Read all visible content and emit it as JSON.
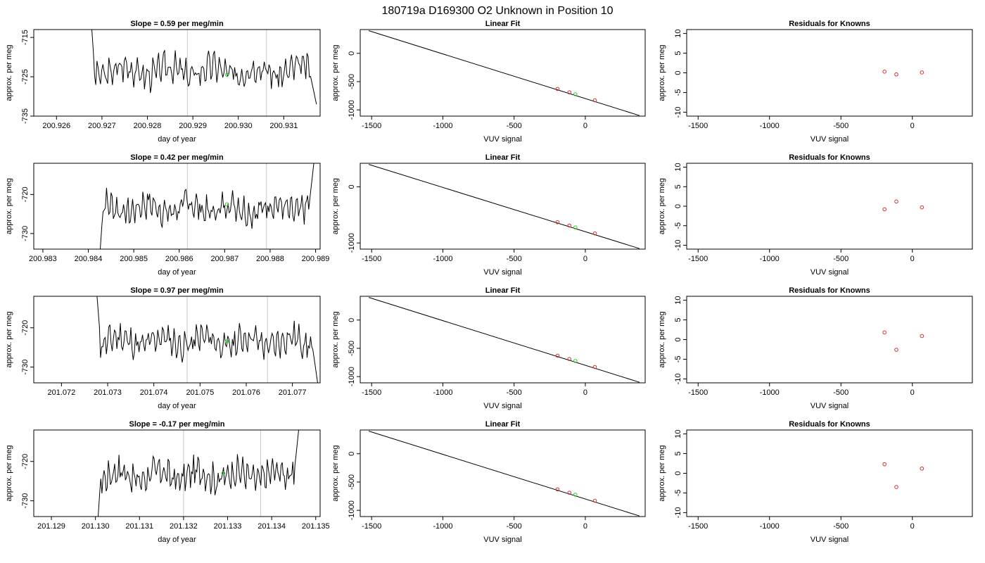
{
  "page_title": "180719a      D169300    O2 Unknown in Position  10",
  "colors": {
    "trace": "#000000",
    "window": "#c8c8c8",
    "known": "#d03030",
    "unknown": "#30d030",
    "fitline": "#000000"
  },
  "chart_data": [
    {
      "type": "line",
      "panel": "timeseries",
      "title": "Slope =  0.59  per meg/min",
      "xlabel": "day of year",
      "ylabel": "approx. per meg",
      "xlim": [
        200.9255,
        200.9318
      ],
      "ylim": [
        -735,
        -713
      ],
      "xticks": [
        "200.926",
        "200.927",
        "200.928",
        "200.929",
        "200.930",
        "200.931"
      ],
      "yticks": [
        "-715",
        "-725",
        "-735"
      ],
      "window_lines": [
        200.92888,
        200.93062
      ],
      "unknown_point": {
        "x": 200.92975,
        "y": -724.5
      },
      "trace_start": 200.92676,
      "trace_end": 200.93172,
      "trace_start_y": -710,
      "trace_end_y": -732,
      "level": -723.5,
      "seed": 3
    },
    {
      "type": "scatter",
      "panel": "fit",
      "title": "Linear Fit",
      "xlabel": "VUV signal",
      "ylabel": "approx. per meg",
      "xlim": [
        -1580,
        420
      ],
      "ylim": [
        -1110,
        420
      ],
      "xticks": [
        "-1500",
        "-1000",
        "-500",
        "0"
      ],
      "yticks": [
        "0",
        "-500",
        "-1000"
      ],
      "line": {
        "x": [
          -1520,
          380
        ],
        "y": [
          400,
          -1100
        ]
      },
      "knowns": [
        {
          "x": -195,
          "y": -630
        },
        {
          "x": -112,
          "y": -690
        },
        {
          "x": 67,
          "y": -830
        }
      ],
      "unknown": {
        "x": -70,
        "y": -723
      }
    },
    {
      "type": "scatter",
      "panel": "residuals",
      "title": "Residuals for Knowns",
      "xlabel": "VUV signal",
      "ylabel": "approx. per meg",
      "xlim": [
        -1580,
        420
      ],
      "ylim": [
        -11,
        11
      ],
      "xticks": [
        "-1500",
        "-1000",
        "-500",
        "0"
      ],
      "yticks": [
        "10",
        "5",
        "0",
        "-5",
        "-10"
      ],
      "points": [
        {
          "x": -195,
          "y": 0.3
        },
        {
          "x": -112,
          "y": -0.4
        },
        {
          "x": 67,
          "y": 0.1
        }
      ]
    },
    {
      "type": "line",
      "panel": "timeseries",
      "title": "Slope =  0.42  per meg/min",
      "xlabel": "day of year",
      "ylabel": "approx. per meg",
      "xlim": [
        200.9828,
        200.9891
      ],
      "ylim": [
        -734,
        -712
      ],
      "xticks": [
        "200.983",
        "200.984",
        "200.985",
        "200.986",
        "200.987",
        "200.988",
        "200.989"
      ],
      "yticks": [
        "-720",
        "-730"
      ],
      "window_lines": [
        200.98618,
        200.98792
      ],
      "unknown_point": {
        "x": 200.98705,
        "y": -722.5
      },
      "trace_start": 200.98425,
      "trace_end": 200.989,
      "trace_start_y": -736,
      "trace_end_y": -708,
      "level": -723.5,
      "seed": 7
    },
    {
      "type": "scatter",
      "panel": "fit",
      "title": "Linear Fit",
      "xlabel": "VUV signal",
      "ylabel": "approx. per meg",
      "xlim": [
        -1580,
        420
      ],
      "ylim": [
        -1110,
        420
      ],
      "xticks": [
        "-1500",
        "-1000",
        "-500",
        "0"
      ],
      "yticks": [
        "0",
        "-1000"
      ],
      "line": {
        "x": [
          -1520,
          380
        ],
        "y": [
          400,
          -1100
        ]
      },
      "knowns": [
        {
          "x": -195,
          "y": -630
        },
        {
          "x": -112,
          "y": -690
        },
        {
          "x": 67,
          "y": -830
        }
      ],
      "unknown": {
        "x": -70,
        "y": -723
      }
    },
    {
      "type": "scatter",
      "panel": "residuals",
      "title": "Residuals for Knowns",
      "xlabel": "VUV signal",
      "ylabel": "approx. per meg",
      "xlim": [
        -1580,
        420
      ],
      "ylim": [
        -11,
        11
      ],
      "xticks": [
        "-1500",
        "-1000",
        "-500",
        "0"
      ],
      "yticks": [
        "10",
        "5",
        "0",
        "-5",
        "-10"
      ],
      "points": [
        {
          "x": -195,
          "y": -0.8
        },
        {
          "x": -112,
          "y": 1.2
        },
        {
          "x": 67,
          "y": -0.3
        }
      ]
    },
    {
      "type": "line",
      "panel": "timeseries",
      "title": "Slope =  0.97  per meg/min",
      "xlabel": "day of year",
      "ylabel": "approx. per meg",
      "xlim": [
        201.0714,
        201.0776
      ],
      "ylim": [
        -734,
        -712
      ],
      "xticks": [
        "201.072",
        "201.073",
        "201.074",
        "201.075",
        "201.076",
        "201.077"
      ],
      "yticks": [
        "-720",
        "-730"
      ],
      "window_lines": [
        201.07472,
        201.07646
      ],
      "unknown_point": {
        "x": 201.07558,
        "y": -723.5
      },
      "trace_start": 201.07277,
      "trace_end": 201.07757,
      "trace_start_y": -712,
      "trace_end_y": -736,
      "level": -723.5,
      "seed": 11
    },
    {
      "type": "scatter",
      "panel": "fit",
      "title": "Linear Fit",
      "xlabel": "VUV signal",
      "ylabel": "approx. per meg",
      "xlim": [
        -1580,
        420
      ],
      "ylim": [
        -1110,
        420
      ],
      "xticks": [
        "-1500",
        "-1000",
        "-500",
        "0"
      ],
      "yticks": [
        "0",
        "-500",
        "-1000"
      ],
      "line": {
        "x": [
          -1520,
          380
        ],
        "y": [
          400,
          -1100
        ]
      },
      "knowns": [
        {
          "x": -195,
          "y": -630
        },
        {
          "x": -112,
          "y": -690
        },
        {
          "x": 67,
          "y": -830
        }
      ],
      "unknown": {
        "x": -70,
        "y": -723
      }
    },
    {
      "type": "scatter",
      "panel": "residuals",
      "title": "Residuals for Knowns",
      "xlabel": "VUV signal",
      "ylabel": "approx. per meg",
      "xlim": [
        -1580,
        420
      ],
      "ylim": [
        -11,
        11
      ],
      "xticks": [
        "-1500",
        "-1000",
        "-500",
        "0"
      ],
      "yticks": [
        "10",
        "5",
        "0",
        "-5",
        "-10"
      ],
      "points": [
        {
          "x": -195,
          "y": 1.8
        },
        {
          "x": -112,
          "y": -2.6
        },
        {
          "x": 67,
          "y": 0.9
        }
      ]
    },
    {
      "type": "line",
      "panel": "timeseries",
      "title": "Slope =  -0.17  per meg/min",
      "xlabel": "day of year",
      "ylabel": "approx. per meg",
      "xlim": [
        201.1286,
        201.1351
      ],
      "ylim": [
        -734,
        -712
      ],
      "xticks": [
        "201.129",
        "201.130",
        "201.131",
        "201.132",
        "201.133",
        "201.134",
        "201.135"
      ],
      "yticks": [
        "-720",
        "-730"
      ],
      "window_lines": [
        201.132,
        201.13375
      ],
      "unknown_point": {
        "x": 201.1329,
        "y": -723
      },
      "trace_start": 201.13005,
      "trace_end": 201.13465,
      "trace_start_y": -736,
      "trace_end_y": -708,
      "level": -723.5,
      "seed": 17
    },
    {
      "type": "scatter",
      "panel": "fit",
      "title": "Linear Fit",
      "xlabel": "VUV signal",
      "ylabel": "approx. per meg",
      "xlim": [
        -1580,
        420
      ],
      "ylim": [
        -1110,
        420
      ],
      "xticks": [
        "-1500",
        "-1000",
        "-500",
        "0"
      ],
      "yticks": [
        "0",
        "-500",
        "-1000"
      ],
      "line": {
        "x": [
          -1520,
          380
        ],
        "y": [
          400,
          -1100
        ]
      },
      "knowns": [
        {
          "x": -195,
          "y": -630
        },
        {
          "x": -112,
          "y": -690
        },
        {
          "x": 67,
          "y": -830
        }
      ],
      "unknown": {
        "x": -70,
        "y": -723
      }
    },
    {
      "type": "scatter",
      "panel": "residuals",
      "title": "Residuals for Knowns",
      "xlabel": "VUV signal",
      "ylabel": "approx. per meg",
      "xlim": [
        -1580,
        420
      ],
      "ylim": [
        -11,
        11
      ],
      "xticks": [
        "-1500",
        "-1000",
        "-500",
        "0"
      ],
      "yticks": [
        "10",
        "5",
        "0",
        "-5",
        "-10"
      ],
      "points": [
        {
          "x": -195,
          "y": 2.3
        },
        {
          "x": -112,
          "y": -3.5
        },
        {
          "x": 67,
          "y": 1.2
        }
      ]
    }
  ]
}
